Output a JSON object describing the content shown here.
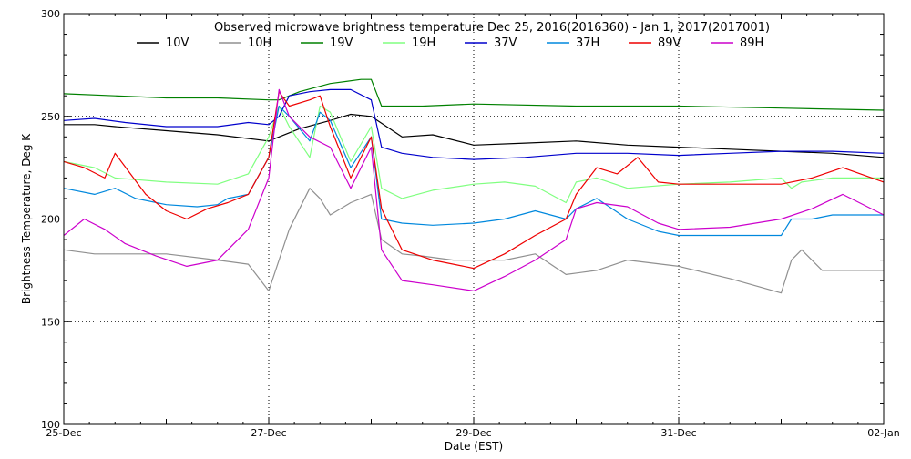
{
  "chart_data": {
    "type": "line",
    "title": "Observed microwave brightness temperature Dec 25, 2016(2016360) - Jan  1, 2017(2017001)",
    "xlabel": "Date (EST)",
    "ylabel": "Brightness Temperature, Deg K",
    "ylim": [
      100,
      300
    ],
    "xlim": [
      0,
      8
    ],
    "y_ticks": [
      "100",
      "150",
      "200",
      "250",
      "300"
    ],
    "x_ticks": [
      {
        "x": 0,
        "label": "25-Dec"
      },
      {
        "x": 2,
        "label": "27-Dec"
      },
      {
        "x": 4,
        "label": "29-Dec"
      },
      {
        "x": 6,
        "label": "31-Dec"
      },
      {
        "x": 8,
        "label": "02-Jan"
      }
    ],
    "grid": "dotted",
    "legend_position": "top",
    "series": [
      {
        "name": "10V",
        "color": "#000000",
        "x": [
          0,
          0.3,
          0.5,
          1.0,
          1.5,
          2.0,
          2.1,
          2.3,
          2.6,
          2.8,
          3.0,
          3.3,
          3.6,
          4.0,
          4.5,
          5.0,
          5.5,
          6.0,
          6.5,
          7.0,
          7.5,
          8.0
        ],
        "y": [
          246,
          246,
          245,
          243,
          241,
          238,
          240,
          244,
          248,
          251,
          250,
          240,
          241,
          236,
          237,
          238,
          236,
          235,
          234,
          233,
          232,
          230
        ]
      },
      {
        "name": "10H",
        "color": "#909090",
        "x": [
          0,
          0.3,
          0.6,
          1.0,
          1.5,
          1.8,
          2.0,
          2.1,
          2.2,
          2.4,
          2.5,
          2.6,
          2.8,
          3.0,
          3.1,
          3.3,
          3.5,
          3.8,
          4.0,
          4.3,
          4.6,
          4.9,
          5.2,
          5.5,
          6.0,
          6.5,
          7.0,
          7.1,
          7.2,
          7.4,
          7.6,
          8.0
        ],
        "y": [
          185,
          183,
          183,
          183,
          180,
          178,
          165,
          180,
          195,
          215,
          210,
          202,
          208,
          212,
          190,
          183,
          182,
          180,
          180,
          180,
          183,
          173,
          175,
          180,
          177,
          171,
          164,
          180,
          185,
          175,
          175,
          175
        ]
      },
      {
        "name": "19V",
        "color": "#008000",
        "x": [
          0,
          0.5,
          1.0,
          1.5,
          2.0,
          2.1,
          2.3,
          2.6,
          2.9,
          3.0,
          3.1,
          3.5,
          4.0,
          5.0,
          6.0,
          7.0,
          8.0
        ],
        "y": [
          261,
          260,
          259,
          259,
          258,
          258,
          262,
          266,
          268,
          268,
          255,
          255,
          256,
          255,
          255,
          254,
          253
        ]
      },
      {
        "name": "19H",
        "color": "#80ff80",
        "x": [
          0,
          0.3,
          0.5,
          1.0,
          1.5,
          1.8,
          2.0,
          2.1,
          2.2,
          2.4,
          2.5,
          2.6,
          2.8,
          3.0,
          3.1,
          3.3,
          3.6,
          4.0,
          4.3,
          4.6,
          4.9,
          5.0,
          5.2,
          5.5,
          6.0,
          6.5,
          7.0,
          7.1,
          7.2,
          7.5,
          8.0
        ],
        "y": [
          228,
          225,
          220,
          218,
          217,
          222,
          240,
          255,
          245,
          230,
          255,
          252,
          228,
          245,
          215,
          210,
          214,
          217,
          218,
          216,
          208,
          218,
          220,
          215,
          217,
          218,
          220,
          215,
          218,
          220,
          220
        ]
      },
      {
        "name": "37V",
        "color": "#0000cc",
        "x": [
          0,
          0.3,
          0.6,
          1.0,
          1.5,
          1.8,
          2.0,
          2.1,
          2.2,
          2.4,
          2.6,
          2.8,
          3.0,
          3.1,
          3.3,
          3.6,
          4.0,
          4.5,
          5.0,
          5.5,
          6.0,
          6.5,
          7.0,
          7.5,
          8.0
        ],
        "y": [
          248,
          249,
          247,
          245,
          245,
          247,
          246,
          250,
          260,
          262,
          263,
          263,
          258,
          235,
          232,
          230,
          229,
          230,
          232,
          232,
          231,
          232,
          233,
          233,
          232
        ]
      },
      {
        "name": "37H",
        "color": "#0088dd",
        "x": [
          0,
          0.3,
          0.5,
          0.7,
          1.0,
          1.3,
          1.5,
          1.6,
          1.8,
          2.0,
          2.1,
          2.2,
          2.4,
          2.5,
          2.6,
          2.8,
          3.0,
          3.1,
          3.3,
          3.6,
          4.0,
          4.3,
          4.6,
          4.9,
          5.0,
          5.2,
          5.5,
          5.8,
          6.0,
          6.5,
          7.0,
          7.1,
          7.3,
          7.5,
          8.0
        ],
        "y": [
          215,
          212,
          215,
          210,
          207,
          206,
          207,
          210,
          212,
          230,
          255,
          250,
          238,
          252,
          248,
          225,
          240,
          200,
          198,
          197,
          198,
          200,
          204,
          200,
          205,
          210,
          200,
          194,
          192,
          192,
          192,
          200,
          200,
          202,
          202
        ]
      },
      {
        "name": "89V",
        "color": "#ee0000",
        "x": [
          0,
          0.2,
          0.4,
          0.5,
          0.8,
          1.0,
          1.2,
          1.4,
          1.6,
          1.8,
          2.0,
          2.1,
          2.2,
          2.4,
          2.5,
          2.6,
          2.8,
          3.0,
          3.1,
          3.3,
          3.6,
          4.0,
          4.3,
          4.6,
          4.9,
          5.0,
          5.2,
          5.4,
          5.6,
          5.8,
          6.0,
          6.5,
          7.0,
          7.3,
          7.6,
          8.0
        ],
        "y": [
          228,
          225,
          220,
          232,
          212,
          204,
          200,
          205,
          208,
          212,
          230,
          262,
          255,
          258,
          260,
          245,
          220,
          240,
          205,
          185,
          180,
          176,
          183,
          192,
          200,
          212,
          225,
          222,
          230,
          218,
          217,
          217,
          217,
          220,
          225,
          218
        ]
      },
      {
        "name": "89H",
        "color": "#cc00cc",
        "x": [
          0,
          0.2,
          0.4,
          0.6,
          0.9,
          1.2,
          1.5,
          1.8,
          2.0,
          2.1,
          2.2,
          2.4,
          2.6,
          2.8,
          3.0,
          3.1,
          3.3,
          3.6,
          4.0,
          4.3,
          4.6,
          4.9,
          5.0,
          5.2,
          5.5,
          5.8,
          6.0,
          6.5,
          7.0,
          7.3,
          7.6,
          8.0
        ],
        "y": [
          192,
          200,
          195,
          188,
          182,
          177,
          180,
          195,
          220,
          263,
          250,
          240,
          235,
          215,
          235,
          185,
          170,
          168,
          165,
          172,
          180,
          190,
          205,
          208,
          206,
          198,
          195,
          196,
          200,
          205,
          212,
          202
        ]
      }
    ]
  }
}
